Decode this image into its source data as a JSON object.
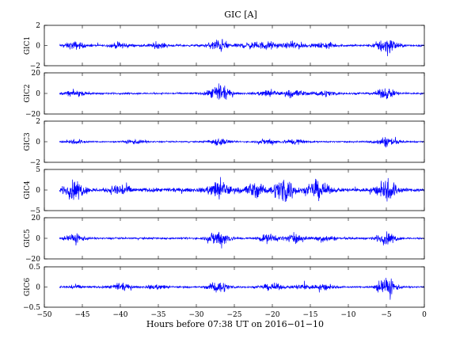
{
  "figure": {
    "title": "GIC [A]",
    "xlabel": "Hours before  07:38 UT on 2016−01−10",
    "line_color": "#0000ff"
  },
  "chart_data": [
    {
      "type": "line",
      "series": [
        {
          "name": "GIC1",
          "values": []
        }
      ],
      "ylabel": "GIC1",
      "xlim": [
        -50,
        0
      ],
      "ylim": [
        -2,
        2
      ],
      "yticks": [
        -2,
        0,
        2
      ],
      "ytick_labels": [
        "−2",
        "0",
        "2"
      ],
      "x_data_range": [
        -48,
        0
      ],
      "typical_noise": 0.15,
      "disturbances": [
        {
          "x": -46.0,
          "amp": 0.5
        },
        {
          "x": -40.0,
          "amp": 0.4
        },
        {
          "x": -35.0,
          "amp": 0.3
        },
        {
          "x": -27.0,
          "amp": 0.9
        },
        {
          "x": -23.0,
          "amp": 0.4
        },
        {
          "x": -20.5,
          "amp": 0.5
        },
        {
          "x": -17.0,
          "amp": 0.5
        },
        {
          "x": -13.0,
          "amp": 0.4
        },
        {
          "x": -5.0,
          "amp": 1.3
        }
      ]
    },
    {
      "type": "line",
      "series": [
        {
          "name": "GIC2",
          "values": []
        }
      ],
      "ylabel": "GIC2",
      "xlim": [
        -50,
        0
      ],
      "ylim": [
        -20,
        20
      ],
      "yticks": [
        -20,
        0,
        20
      ],
      "ytick_labels": [
        "−20",
        "0",
        "20"
      ],
      "x_data_range": [
        -48,
        0
      ],
      "typical_noise": 1.2,
      "disturbances": [
        {
          "x": -46.0,
          "amp": 4
        },
        {
          "x": -27.0,
          "amp": 12
        },
        {
          "x": -20.5,
          "amp": 5
        },
        {
          "x": -17.0,
          "amp": 6
        },
        {
          "x": -13.0,
          "amp": 4
        },
        {
          "x": -5.0,
          "amp": 7
        }
      ]
    },
    {
      "type": "line",
      "series": [
        {
          "name": "GIC3",
          "values": []
        }
      ],
      "ylabel": "GIC3",
      "xlim": [
        -50,
        0
      ],
      "ylim": [
        -2,
        2
      ],
      "yticks": [
        -2,
        0,
        2
      ],
      "ytick_labels": [
        "−2",
        "0",
        "2"
      ],
      "x_data_range": [
        -48,
        0
      ],
      "typical_noise": 0.1,
      "disturbances": [
        {
          "x": -46.0,
          "amp": 0.3
        },
        {
          "x": -38.0,
          "amp": 0.3
        },
        {
          "x": -27.0,
          "amp": 0.5
        },
        {
          "x": -20.5,
          "amp": 0.4
        },
        {
          "x": -17.0,
          "amp": 0.4
        },
        {
          "x": -5.0,
          "amp": 0.7
        }
      ]
    },
    {
      "type": "line",
      "series": [
        {
          "name": "GIC4",
          "values": []
        }
      ],
      "ylabel": "GIC4",
      "xlim": [
        -50,
        0
      ],
      "ylim": [
        -5,
        5
      ],
      "yticks": [
        -5,
        0,
        5
      ],
      "ytick_labels": [
        "−5",
        "0",
        "5"
      ],
      "x_data_range": [
        -48,
        0
      ],
      "typical_noise": 0.7,
      "disturbances": [
        {
          "x": -46.0,
          "amp": 3
        },
        {
          "x": -40.0,
          "amp": 2
        },
        {
          "x": -27.0,
          "amp": 3.5
        },
        {
          "x": -22.5,
          "amp": 2.5
        },
        {
          "x": -18.5,
          "amp": 4.5
        },
        {
          "x": -14.0,
          "amp": 3
        },
        {
          "x": -5.0,
          "amp": 4
        }
      ]
    },
    {
      "type": "line",
      "series": [
        {
          "name": "GIC5",
          "values": []
        }
      ],
      "ylabel": "GIC5",
      "xlim": [
        -50,
        0
      ],
      "ylim": [
        -20,
        20
      ],
      "yticks": [
        -20,
        0,
        20
      ],
      "ytick_labels": [
        "−20",
        "0",
        "20"
      ],
      "x_data_range": [
        -48,
        0
      ],
      "typical_noise": 1.3,
      "disturbances": [
        {
          "x": -46.0,
          "amp": 6
        },
        {
          "x": -27.0,
          "amp": 12
        },
        {
          "x": -20.5,
          "amp": 6
        },
        {
          "x": -17.0,
          "amp": 6
        },
        {
          "x": -13.0,
          "amp": 4
        },
        {
          "x": -5.0,
          "amp": 8
        }
      ]
    },
    {
      "type": "line",
      "series": [
        {
          "name": "GIC6",
          "values": []
        }
      ],
      "ylabel": "GIC6",
      "xlim": [
        -50,
        0
      ],
      "ylim": [
        -0.5,
        0.5
      ],
      "yticks": [
        -0.5,
        0,
        0.5
      ],
      "ytick_labels": [
        "−0.5",
        "0",
        "0.5"
      ],
      "x_data_range": [
        -48,
        0
      ],
      "typical_noise": 0.03,
      "disturbances": [
        {
          "x": -46.0,
          "amp": 0.06
        },
        {
          "x": -40.0,
          "amp": 0.12
        },
        {
          "x": -35.0,
          "amp": 0.08
        },
        {
          "x": -27.0,
          "amp": 0.2
        },
        {
          "x": -20.0,
          "amp": 0.12
        },
        {
          "x": -16.0,
          "amp": 0.1
        },
        {
          "x": -13.0,
          "amp": 0.12
        },
        {
          "x": -5.0,
          "amp": 0.35
        }
      ]
    }
  ],
  "x_axis": {
    "ticks": [
      -50,
      -45,
      -40,
      -35,
      -30,
      -25,
      -20,
      -15,
      -10,
      -5,
      0
    ],
    "tick_labels": [
      "−50",
      "−45",
      "−40",
      "−35",
      "−30",
      "−25",
      "−20",
      "−15",
      "−10",
      "−5",
      "0"
    ]
  }
}
